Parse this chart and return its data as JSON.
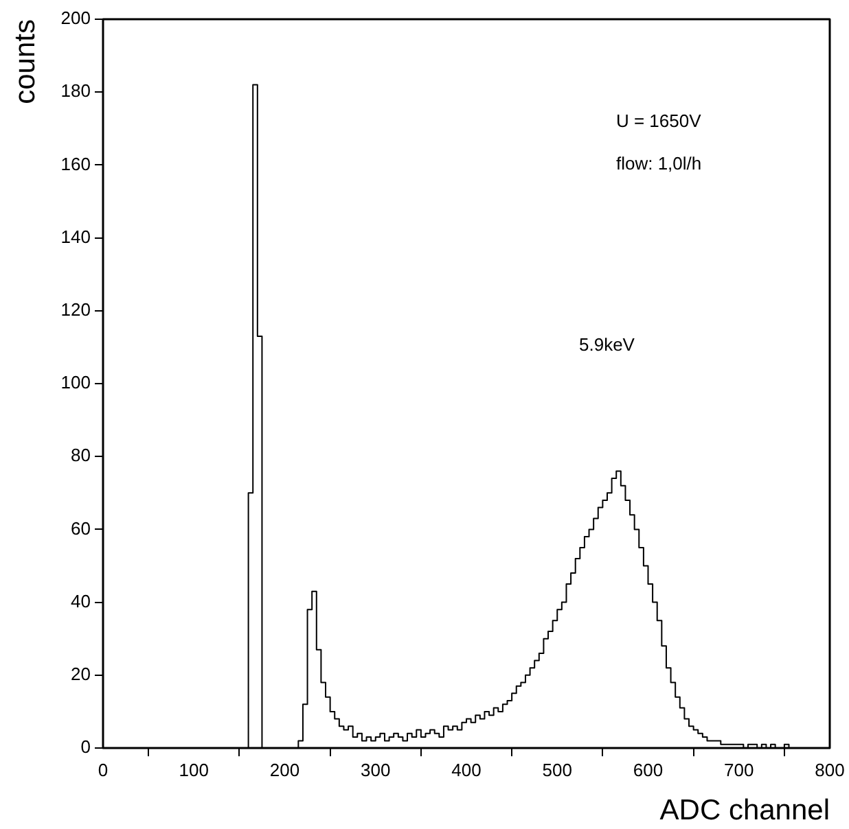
{
  "chart_data": {
    "type": "histogram",
    "xlabel": "ADC channel",
    "ylabel": "counts",
    "color": "#000000",
    "bins": [
      0,
      5,
      10,
      15,
      20,
      25,
      30,
      35,
      40,
      45,
      50,
      55,
      60,
      65,
      70,
      75,
      80,
      85,
      90,
      95,
      100,
      105,
      110,
      115,
      120,
      125,
      130,
      135,
      140,
      145,
      150,
      155,
      160,
      165,
      170,
      175,
      180,
      185,
      190,
      195,
      200,
      205,
      210,
      215,
      220,
      225,
      230,
      235,
      240,
      245,
      250,
      255,
      260,
      265,
      270,
      275,
      280,
      285,
      290,
      295,
      300,
      305,
      310,
      315,
      320,
      325,
      330,
      335,
      340,
      345,
      350,
      355,
      360,
      365,
      370,
      375,
      380,
      385,
      390,
      395,
      400,
      405,
      410,
      415,
      420,
      425,
      430,
      435,
      440,
      445,
      450,
      455,
      460,
      465,
      470,
      475,
      480,
      485,
      490,
      495,
      500,
      505,
      510,
      515,
      520,
      525,
      530,
      535,
      540,
      545,
      550,
      555,
      560,
      565,
      570,
      575,
      580,
      585,
      590,
      595,
      600,
      605,
      610,
      615,
      620,
      625,
      630,
      635,
      640,
      645,
      650,
      655,
      660,
      665,
      670,
      675,
      680,
      685,
      690,
      695,
      700,
      705,
      710,
      715,
      720,
      725,
      730,
      735,
      740,
      745,
      750,
      755,
      760,
      765,
      770,
      775,
      780,
      785,
      790,
      795,
      800
    ],
    "values": [
      0,
      0,
      0,
      0,
      0,
      0,
      0,
      0,
      0,
      0,
      0,
      0,
      0,
      0,
      0,
      0,
      0,
      0,
      0,
      0,
      0,
      0,
      0,
      0,
      0,
      0,
      0,
      0,
      0,
      0,
      0,
      0,
      70,
      182,
      113,
      0,
      0,
      0,
      0,
      0,
      0,
      0,
      0,
      2,
      12,
      38,
      43,
      27,
      18,
      14,
      10,
      8,
      6,
      5,
      6,
      3,
      4,
      2,
      3,
      2,
      3,
      4,
      2,
      3,
      4,
      3,
      2,
      4,
      3,
      5,
      3,
      4,
      5,
      4,
      3,
      6,
      5,
      6,
      5,
      7,
      8,
      7,
      9,
      8,
      10,
      9,
      11,
      10,
      12,
      13,
      15,
      17,
      18,
      20,
      22,
      24,
      26,
      30,
      32,
      35,
      38,
      40,
      45,
      48,
      52,
      55,
      58,
      60,
      63,
      66,
      68,
      70,
      74,
      76,
      72,
      68,
      64,
      60,
      55,
      50,
      45,
      40,
      35,
      28,
      22,
      18,
      14,
      11,
      8,
      6,
      5,
      4,
      3,
      2,
      2,
      2,
      1,
      1,
      1,
      1,
      1,
      0,
      1,
      1,
      0,
      1,
      0,
      1,
      0,
      0,
      1,
      0,
      0,
      0,
      0,
      0,
      0,
      0,
      0,
      0
    ],
    "xlim": [
      0,
      800
    ],
    "xticks": [
      0,
      100,
      200,
      300,
      400,
      500,
      600,
      700,
      800
    ],
    "ylim": [
      0,
      200
    ],
    "yticks": [
      0,
      20,
      40,
      60,
      80,
      100,
      120,
      140,
      160,
      180,
      200
    ],
    "annotations": [
      "U = 1650V",
      "flow: 1,0l/h",
      "5.9keV"
    ]
  }
}
